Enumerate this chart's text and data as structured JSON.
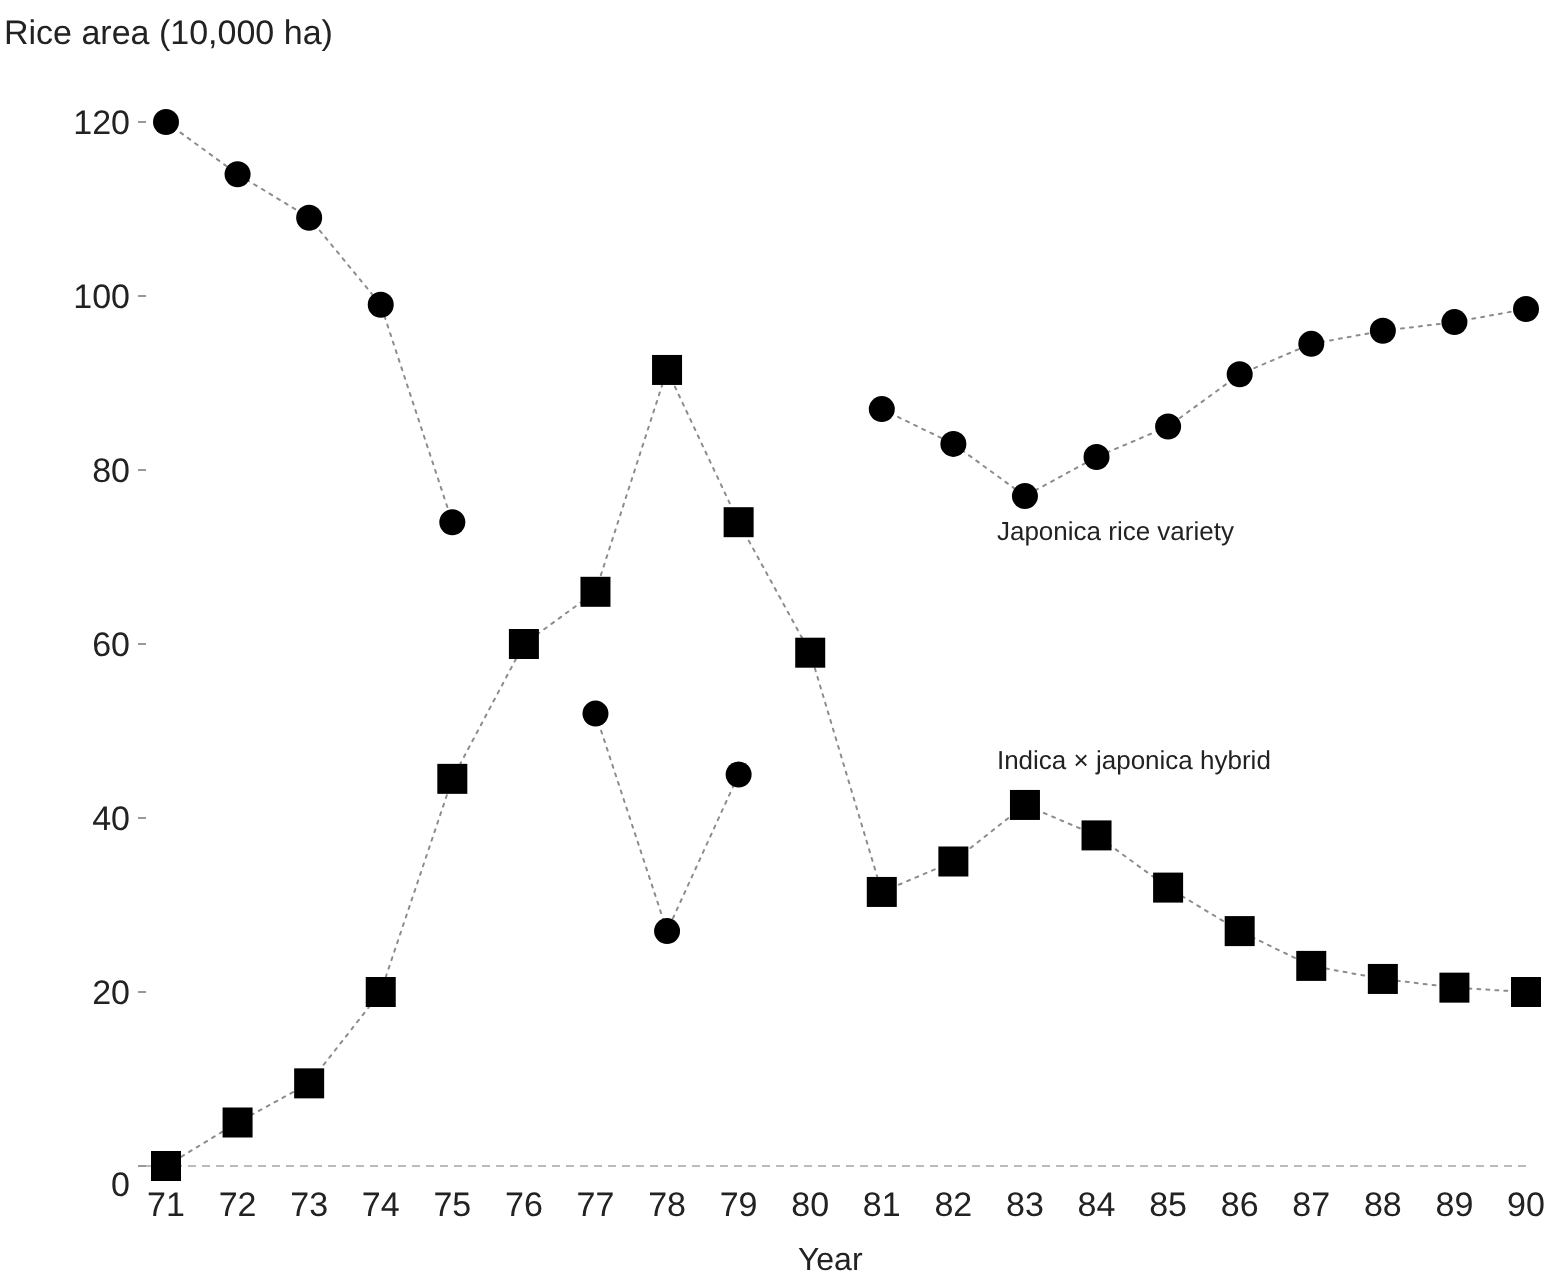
{
  "chart_data": {
    "type": "line",
    "ylabel": "Rice area (10,000 ha)",
    "xlabel": "Year",
    "categories": [
      "71",
      "72",
      "73",
      "74",
      "75",
      "76",
      "77",
      "78",
      "79",
      "80",
      "81",
      "82",
      "83",
      "84",
      "85",
      "86",
      "87",
      "88",
      "89",
      "90"
    ],
    "series": [
      {
        "name": "Japonica rice variety",
        "color": "#000000",
        "marker": "circle",
        "values": [
          120,
          114,
          109,
          99,
          74,
          null,
          52,
          27,
          45,
          null,
          87,
          83,
          77,
          81.5,
          85,
          91,
          94.5,
          96,
          97,
          98.5
        ]
      },
      {
        "name": "Indica × japonica hybrid",
        "color": "#000000",
        "marker": "square",
        "values": [
          0,
          5,
          9.5,
          20,
          44.5,
          60,
          66,
          91.5,
          74,
          59,
          31.5,
          35,
          41.5,
          38,
          32,
          27,
          23,
          21.5,
          20.5,
          20
        ]
      }
    ],
    "ylim": [
      0,
      120
    ],
    "yticks": [
      0,
      20,
      40,
      60,
      80,
      100,
      120
    ],
    "grid": false,
    "line_style": "dotted"
  }
}
